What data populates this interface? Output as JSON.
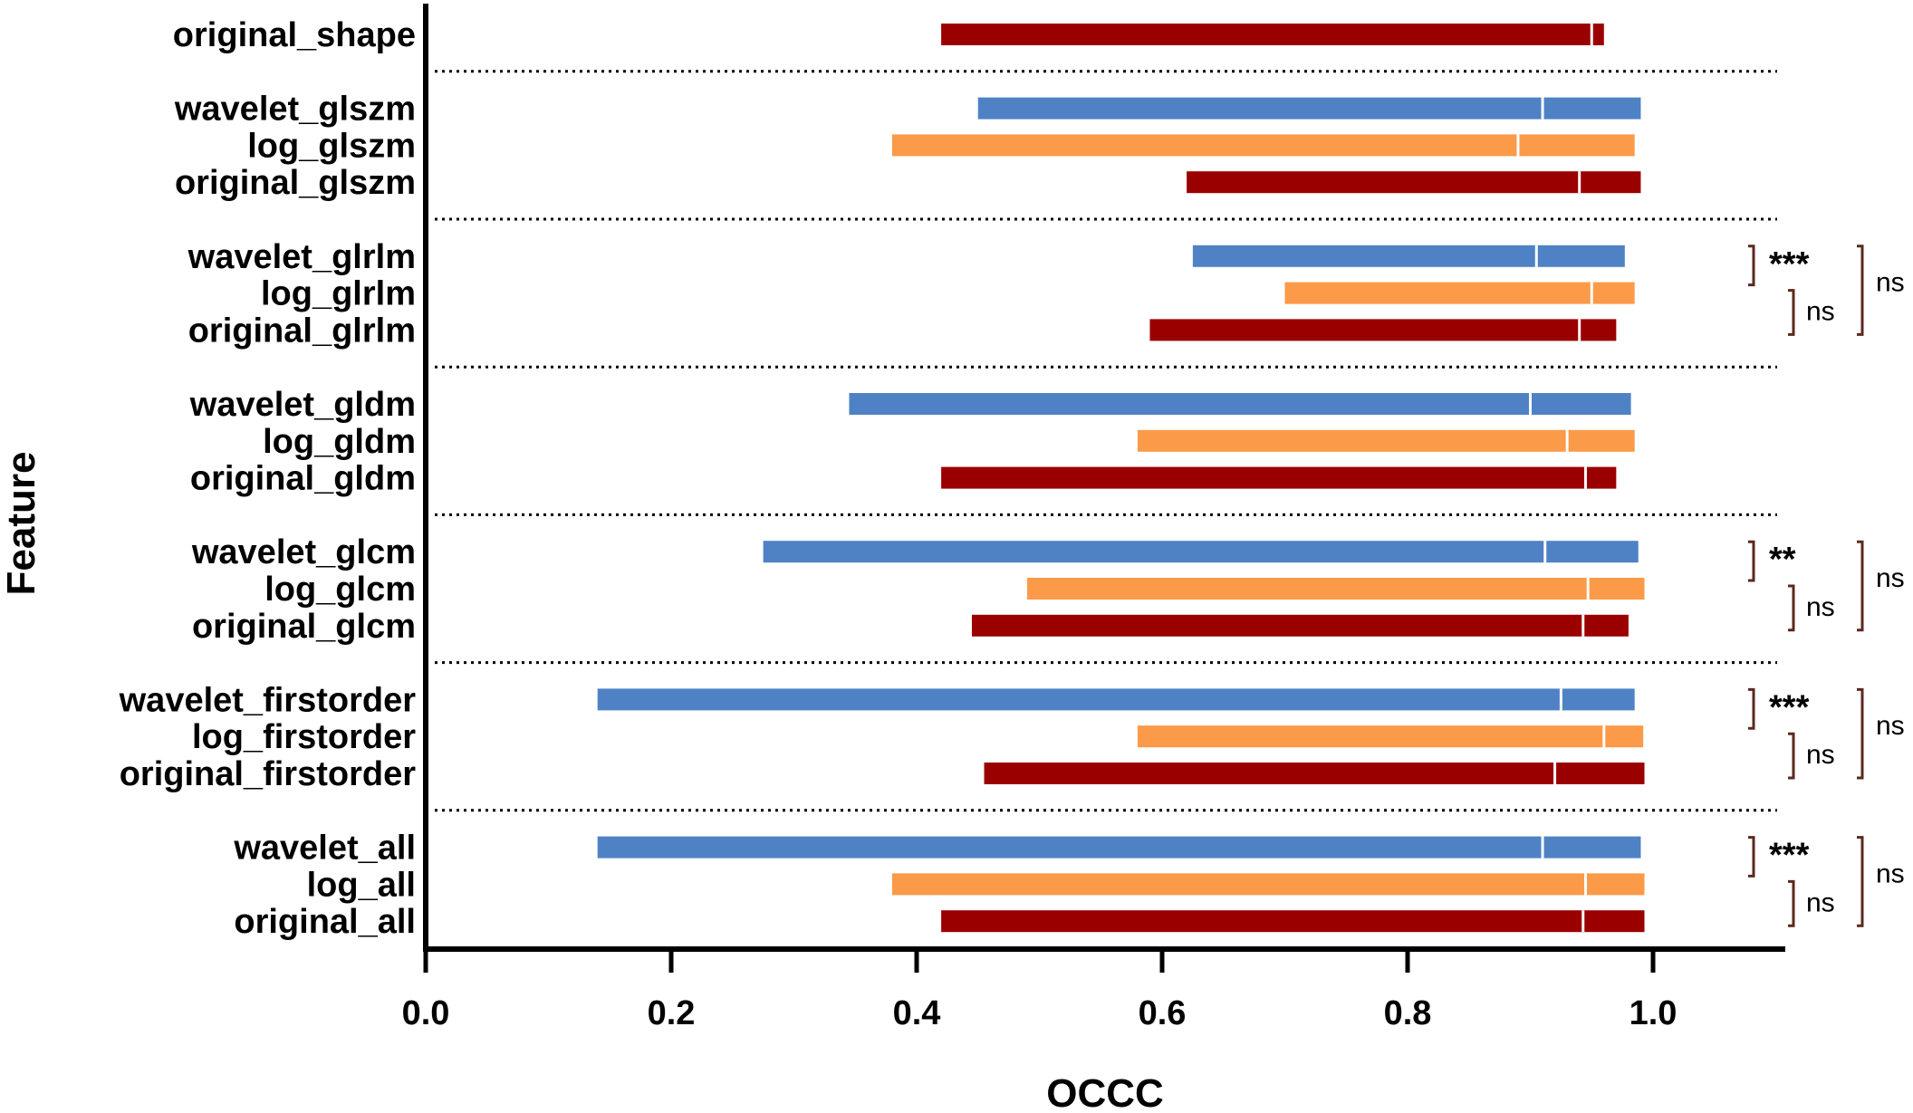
{
  "chart_data": {
    "type": "bar",
    "subtype": "floating-range",
    "xlabel": "OCCC",
    "ylabel": "Feature",
    "xlim": [
      0.0,
      1.1
    ],
    "xticks": [
      "0.0",
      "0.2",
      "0.4",
      "0.6",
      "0.8",
      "1.0"
    ],
    "colors": {
      "wavelet": "#4f82c5",
      "log": "#fb9a48",
      "original": "#9b0000",
      "bracket": "#5a2a1e"
    },
    "groups": [
      {
        "name": "shape",
        "bars": [
          {
            "label": "original_shape",
            "series": "original",
            "min": 0.42,
            "max": 0.96,
            "mid": 0.95
          }
        ]
      },
      {
        "name": "glszm",
        "bars": [
          {
            "label": "wavelet_glszm",
            "series": "wavelet",
            "min": 0.45,
            "max": 0.99,
            "mid": 0.91
          },
          {
            "label": "log_glszm",
            "series": "log",
            "min": 0.38,
            "max": 0.985,
            "mid": 0.89
          },
          {
            "label": "original_glszm",
            "series": "original",
            "min": 0.62,
            "max": 0.99,
            "mid": 0.94
          }
        ]
      },
      {
        "name": "glrlm",
        "bars": [
          {
            "label": "wavelet_glrlm",
            "series": "wavelet",
            "min": 0.625,
            "max": 0.977,
            "mid": 0.905
          },
          {
            "label": "log_glrlm",
            "series": "log",
            "min": 0.7,
            "max": 0.985,
            "mid": 0.95
          },
          {
            "label": "original_glrlm",
            "series": "original",
            "min": 0.59,
            "max": 0.97,
            "mid": 0.94
          }
        ]
      },
      {
        "name": "gldm",
        "bars": [
          {
            "label": "wavelet_gldm",
            "series": "wavelet",
            "min": 0.345,
            "max": 0.982,
            "mid": 0.9
          },
          {
            "label": "log_gldm",
            "series": "log",
            "min": 0.58,
            "max": 0.985,
            "mid": 0.93
          },
          {
            "label": "original_gldm",
            "series": "original",
            "min": 0.42,
            "max": 0.97,
            "mid": 0.945
          }
        ]
      },
      {
        "name": "glcm",
        "bars": [
          {
            "label": "wavelet_glcm",
            "series": "wavelet",
            "min": 0.275,
            "max": 0.988,
            "mid": 0.912
          },
          {
            "label": "log_glcm",
            "series": "log",
            "min": 0.49,
            "max": 0.993,
            "mid": 0.947
          },
          {
            "label": "original_glcm",
            "series": "original",
            "min": 0.445,
            "max": 0.98,
            "mid": 0.943
          }
        ]
      },
      {
        "name": "firstorder",
        "bars": [
          {
            "label": "wavelet_firstorder",
            "series": "wavelet",
            "min": 0.14,
            "max": 0.985,
            "mid": 0.925
          },
          {
            "label": "log_firstorder",
            "series": "log",
            "min": 0.58,
            "max": 0.992,
            "mid": 0.96
          },
          {
            "label": "original_firstorder",
            "series": "original",
            "min": 0.455,
            "max": 0.993,
            "mid": 0.92
          }
        ]
      },
      {
        "name": "all",
        "bars": [
          {
            "label": "wavelet_all",
            "series": "wavelet",
            "min": 0.14,
            "max": 0.99,
            "mid": 0.91
          },
          {
            "label": "log_all",
            "series": "log",
            "min": 0.38,
            "max": 0.993,
            "mid": 0.945
          },
          {
            "label": "original_all",
            "series": "original",
            "min": 0.42,
            "max": 0.993,
            "mid": 0.943
          }
        ]
      }
    ],
    "comparisons": [
      {
        "group": "glrlm",
        "wavelet_vs_log": "***",
        "log_vs_original": "ns",
        "wavelet_vs_original": "ns"
      },
      {
        "group": "glcm",
        "wavelet_vs_log": "**",
        "log_vs_original": "ns",
        "wavelet_vs_original": "ns"
      },
      {
        "group": "firstorder",
        "wavelet_vs_log": "***",
        "log_vs_original": "ns",
        "wavelet_vs_original": "ns"
      },
      {
        "group": "all",
        "wavelet_vs_log": "***",
        "log_vs_original": "ns",
        "wavelet_vs_original": "ns"
      }
    ]
  }
}
